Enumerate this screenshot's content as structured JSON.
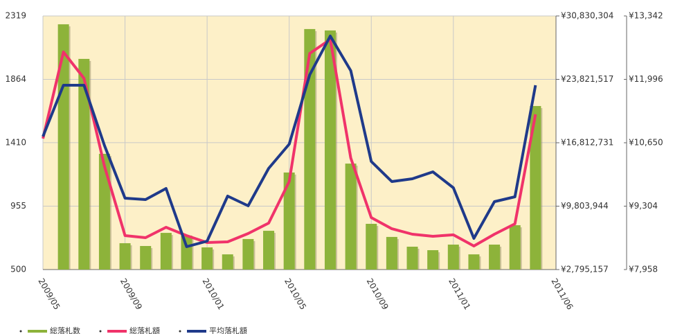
{
  "chart_data": {
    "type": "combo",
    "categories": [
      "2009/05",
      null,
      null,
      null,
      "2009/09",
      null,
      null,
      null,
      "2010/01",
      null,
      null,
      null,
      "2010/05",
      null,
      null,
      null,
      "2010/09",
      null,
      null,
      null,
      "2011/01",
      null,
      null,
      null,
      null,
      "2011/06"
    ],
    "ylim": [
      500,
      2319
    ],
    "yticks": [
      500,
      955,
      1410,
      1864,
      2319
    ],
    "y2lim": [
      2795157,
      30830304
    ],
    "y2ticks": [
      {
        "value": 2795157,
        "label": "¥2,795,157"
      },
      {
        "value": 9803944,
        "label": "¥9,803,944"
      },
      {
        "value": 16812731,
        "label": "¥16,812,731"
      },
      {
        "value": 23821517,
        "label": "¥23,821,517"
      },
      {
        "value": 30830304,
        "label": "¥30,830,304"
      }
    ],
    "y3lim": [
      7958,
      13342
    ],
    "y3ticks": [
      {
        "value": 7958,
        "label": "¥7,958"
      },
      {
        "value": 9304,
        "label": "¥9,304"
      },
      {
        "value": 10650,
        "label": "¥10,650"
      },
      {
        "value": 11996,
        "label": "¥11,996"
      },
      {
        "value": 13342,
        "label": "¥13,342"
      }
    ],
    "grid": true,
    "series": [
      {
        "name": "総落札数",
        "type": "bar",
        "color": "#8db33a",
        "axis": "y",
        "values": [
          null,
          2259,
          2011,
          1330,
          689,
          669,
          763,
          744,
          659,
          609,
          719,
          778,
          1196,
          2225,
          2215,
          1260,
          828,
          734,
          664,
          639,
          679,
          609,
          679,
          818,
          1673,
          null
        ]
      },
      {
        "name": "総落札額",
        "type": "line",
        "color": "#f0336a",
        "axis": "y2",
        "values": [
          17270000,
          26850000,
          23940000,
          14210000,
          6550000,
          6320000,
          7470000,
          6550000,
          5780000,
          5860000,
          6780000,
          7930000,
          12520000,
          26690000,
          28230000,
          15130000,
          8540000,
          7310000,
          6700000,
          6470000,
          6630000,
          5400000,
          6700000,
          7850000,
          19950000,
          null
        ]
      },
      {
        "name": "平均落札額",
        "type": "line",
        "color": "#1f3a8a",
        "axis": "y3",
        "values": [
          10782,
          11871,
          11871,
          10591,
          9473,
          9444,
          9679,
          8443,
          8561,
          9517,
          9311,
          10106,
          10620,
          12092,
          12915,
          12180,
          10253,
          9826,
          9885,
          10032,
          9694,
          8620,
          9400,
          9503,
          11871,
          null
        ]
      }
    ]
  }
}
